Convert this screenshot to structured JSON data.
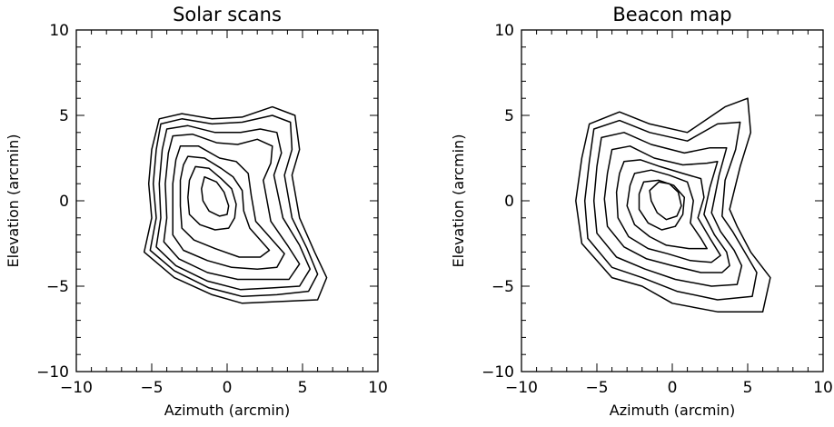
{
  "chart_data": [
    {
      "type": "contour",
      "title": "Solar scans",
      "xlabel": "Azimuth (arcmin)",
      "ylabel": "Elevation (arcmin)",
      "xlim": [
        -10,
        10
      ],
      "ylim": [
        -10,
        10
      ],
      "xticks": [
        -10,
        -5,
        0,
        5,
        10
      ],
      "yticks": [
        -10,
        -5,
        0,
        5,
        10
      ],
      "xtick_labels": [
        "−10",
        "−5",
        "0",
        "5",
        "10"
      ],
      "ytick_labels": [
        "−10",
        "−5",
        "0",
        "5",
        "10"
      ],
      "grid": false,
      "legend": "none",
      "contours": [
        [
          [
            -4.5,
            4.8
          ],
          [
            -3,
            5.1
          ],
          [
            -1,
            4.8
          ],
          [
            1,
            4.9
          ],
          [
            3,
            5.5
          ],
          [
            4.5,
            5
          ],
          [
            4.8,
            3
          ],
          [
            4.3,
            1.5
          ],
          [
            4.8,
            -1
          ],
          [
            5.8,
            -3
          ],
          [
            6.6,
            -4.5
          ],
          [
            6,
            -5.8
          ],
          [
            3.5,
            -5.9
          ],
          [
            1,
            -6
          ],
          [
            -1,
            -5.5
          ],
          [
            -3.5,
            -4.5
          ],
          [
            -5.5,
            -3
          ],
          [
            -5,
            -1
          ],
          [
            -5.2,
            1
          ],
          [
            -5,
            3
          ],
          [
            -4.5,
            4.8
          ]
        ],
        [
          [
            -4.4,
            4.5
          ],
          [
            -3,
            4.8
          ],
          [
            -1,
            4.5
          ],
          [
            1,
            4.6
          ],
          [
            3,
            5
          ],
          [
            4.2,
            4.6
          ],
          [
            4.3,
            3
          ],
          [
            3.8,
            1.5
          ],
          [
            4.3,
            -1
          ],
          [
            5.3,
            -2.8
          ],
          [
            6,
            -4.3
          ],
          [
            5.4,
            -5.3
          ],
          [
            3.3,
            -5.5
          ],
          [
            1,
            -5.6
          ],
          [
            -1.2,
            -5.1
          ],
          [
            -3.5,
            -4.1
          ],
          [
            -5.1,
            -2.9
          ],
          [
            -4.7,
            -1
          ],
          [
            -4.9,
            1
          ],
          [
            -4.7,
            3
          ],
          [
            -4.4,
            4.5
          ]
        ],
        [
          [
            -4,
            4.2
          ],
          [
            -2.6,
            4.4
          ],
          [
            -0.8,
            4
          ],
          [
            0.9,
            4
          ],
          [
            2.2,
            4.2
          ],
          [
            3.3,
            4
          ],
          [
            3.6,
            2.8
          ],
          [
            3.1,
            1.5
          ],
          [
            3.7,
            -1
          ],
          [
            4.8,
            -2.6
          ],
          [
            5.5,
            -4
          ],
          [
            4.8,
            -5
          ],
          [
            3,
            -5.1
          ],
          [
            0.9,
            -5.2
          ],
          [
            -1.3,
            -4.7
          ],
          [
            -3.4,
            -3.8
          ],
          [
            -4.7,
            -2.7
          ],
          [
            -4.4,
            -1
          ],
          [
            -4.5,
            1
          ],
          [
            -4.3,
            3
          ],
          [
            -4,
            4.2
          ]
        ],
        [
          [
            -3.6,
            3.8
          ],
          [
            -2.3,
            3.9
          ],
          [
            -0.7,
            3.4
          ],
          [
            0.7,
            3.3
          ],
          [
            2,
            3.6
          ],
          [
            3,
            3.2
          ],
          [
            2.9,
            2.2
          ],
          [
            2.4,
            1.2
          ],
          [
            2.9,
            -1.2
          ],
          [
            4,
            -2.6
          ],
          [
            4.8,
            -3.7
          ],
          [
            4.1,
            -4.6
          ],
          [
            2.6,
            -4.6
          ],
          [
            0.7,
            -4.6
          ],
          [
            -1.3,
            -4.2
          ],
          [
            -3.2,
            -3.4
          ],
          [
            -4.2,
            -2.4
          ],
          [
            -4,
            -1
          ],
          [
            -4.1,
            1
          ],
          [
            -3.9,
            2.8
          ],
          [
            -3.6,
            3.8
          ]
        ],
        [
          [
            -3.1,
            3.2
          ],
          [
            -1.9,
            3.2
          ],
          [
            -0.5,
            2.5
          ],
          [
            0.6,
            2.3
          ],
          [
            1.4,
            1.6
          ],
          [
            1.6,
            0.3
          ],
          [
            1.9,
            -1.2
          ],
          [
            3,
            -2.3
          ],
          [
            3.8,
            -3.1
          ],
          [
            3.3,
            -3.9
          ],
          [
            2,
            -4
          ],
          [
            0.3,
            -3.9
          ],
          [
            -1.3,
            -3.5
          ],
          [
            -2.9,
            -2.9
          ],
          [
            -3.6,
            -2
          ],
          [
            -3.6,
            -0.8
          ],
          [
            -3.6,
            1
          ],
          [
            -3.4,
            2.4
          ],
          [
            -3.1,
            3.2
          ]
        ],
        [
          [
            -2.6,
            2.6
          ],
          [
            -1.5,
            2.5
          ],
          [
            -0.4,
            1.9
          ],
          [
            0.4,
            1.4
          ],
          [
            1,
            0.6
          ],
          [
            1.1,
            -0.6
          ],
          [
            1.5,
            -1.6
          ],
          [
            2.3,
            -2.4
          ],
          [
            2.8,
            -2.9
          ],
          [
            2.2,
            -3.3
          ],
          [
            0.8,
            -3.3
          ],
          [
            -0.8,
            -2.8
          ],
          [
            -2.2,
            -2.3
          ],
          [
            -3,
            -1.6
          ],
          [
            -3.1,
            -0.3
          ],
          [
            -3.1,
            1.2
          ],
          [
            -2.9,
            2.1
          ],
          [
            -2.6,
            2.6
          ]
        ],
        [
          [
            -2.1,
            2
          ],
          [
            -1.2,
            1.9
          ],
          [
            -0.4,
            1.3
          ],
          [
            0.3,
            0.7
          ],
          [
            0.6,
            -0.2
          ],
          [
            0.5,
            -1
          ],
          [
            0.1,
            -1.6
          ],
          [
            -0.8,
            -1.7
          ],
          [
            -1.8,
            -1.4
          ],
          [
            -2.5,
            -0.8
          ],
          [
            -2.6,
            0.2
          ],
          [
            -2.5,
            1.2
          ],
          [
            -2.1,
            2
          ]
        ],
        [
          [
            -1.5,
            1.4
          ],
          [
            -0.7,
            1.1
          ],
          [
            -0.2,
            0.5
          ],
          [
            0.1,
            -0.3
          ],
          [
            0,
            -0.8
          ],
          [
            -0.5,
            -0.9
          ],
          [
            -1.2,
            -0.6
          ],
          [
            -1.6,
            0
          ],
          [
            -1.7,
            0.7
          ],
          [
            -1.5,
            1.4
          ]
        ]
      ]
    },
    {
      "type": "contour",
      "title": "Beacon map",
      "xlabel": "Azimuth (arcmin)",
      "ylabel": "Elevation (arcmin)",
      "xlim": [
        -10,
        10
      ],
      "ylim": [
        -10,
        10
      ],
      "xticks": [
        -10,
        -5,
        0,
        5,
        10
      ],
      "yticks": [
        -10,
        -5,
        0,
        5,
        10
      ],
      "xtick_labels": [
        "−10",
        "−5",
        "0",
        "5",
        "10"
      ],
      "ytick_labels": [
        "−10",
        "−5",
        "0",
        "5",
        "10"
      ],
      "grid": false,
      "legend": "none",
      "contours": [
        [
          [
            -5.5,
            4.5
          ],
          [
            -3.5,
            5.2
          ],
          [
            -1.5,
            4.5
          ],
          [
            1,
            4
          ],
          [
            3.5,
            5.5
          ],
          [
            5,
            6
          ],
          [
            5.2,
            4
          ],
          [
            4.5,
            2
          ],
          [
            3.8,
            -0.5
          ],
          [
            4.3,
            -1.5
          ],
          [
            5.2,
            -3
          ],
          [
            6.5,
            -4.5
          ],
          [
            6,
            -6.5
          ],
          [
            3,
            -6.5
          ],
          [
            0,
            -6
          ],
          [
            -2,
            -5
          ],
          [
            -4,
            -4.5
          ],
          [
            -6,
            -2.5
          ],
          [
            -6.4,
            0
          ],
          [
            -6,
            2.5
          ],
          [
            -5.5,
            4.5
          ]
        ],
        [
          [
            -5.2,
            4.2
          ],
          [
            -3.5,
            4.7
          ],
          [
            -1.5,
            4
          ],
          [
            1,
            3.5
          ],
          [
            3,
            4.5
          ],
          [
            4.5,
            4.6
          ],
          [
            4.2,
            3
          ],
          [
            3.5,
            1.2
          ],
          [
            3.3,
            -0.9
          ],
          [
            4,
            -1.8
          ],
          [
            4.8,
            -3
          ],
          [
            5.6,
            -4.2
          ],
          [
            5.3,
            -5.6
          ],
          [
            3,
            -5.8
          ],
          [
            0.3,
            -5.3
          ],
          [
            -2,
            -4.5
          ],
          [
            -4,
            -3.9
          ],
          [
            -5.6,
            -2.2
          ],
          [
            -5.8,
            0
          ],
          [
            -5.5,
            2.3
          ],
          [
            -5.2,
            4.2
          ]
        ],
        [
          [
            -4.7,
            3.7
          ],
          [
            -3.2,
            4
          ],
          [
            -1.4,
            3.3
          ],
          [
            0.8,
            2.8
          ],
          [
            2.5,
            3.1
          ],
          [
            3.6,
            3.1
          ],
          [
            3.1,
            1.5
          ],
          [
            2.6,
            -0.7
          ],
          [
            3.2,
            -1.8
          ],
          [
            4.1,
            -2.9
          ],
          [
            4.6,
            -3.8
          ],
          [
            4.3,
            -4.9
          ],
          [
            2.6,
            -5
          ],
          [
            0.2,
            -4.6
          ],
          [
            -1.8,
            -4
          ],
          [
            -3.7,
            -3.3
          ],
          [
            -5,
            -1.9
          ],
          [
            -5.2,
            0
          ],
          [
            -5,
            2
          ],
          [
            -4.7,
            3.7
          ]
        ],
        [
          [
            -4,
            3
          ],
          [
            -2.8,
            3.2
          ],
          [
            -1.2,
            2.5
          ],
          [
            0.7,
            2.1
          ],
          [
            2.3,
            2.2
          ],
          [
            3,
            2.3
          ],
          [
            2.5,
            0.8
          ],
          [
            2.1,
            -0.8
          ],
          [
            2.8,
            -2
          ],
          [
            3.6,
            -3
          ],
          [
            3.8,
            -3.8
          ],
          [
            3.3,
            -4.2
          ],
          [
            1.9,
            -4.2
          ],
          [
            0,
            -3.8
          ],
          [
            -1.7,
            -3.4
          ],
          [
            -3.2,
            -2.7
          ],
          [
            -4.3,
            -1.5
          ],
          [
            -4.5,
            0.1
          ],
          [
            -4.3,
            1.6
          ],
          [
            -4,
            3
          ]
        ],
        [
          [
            -3.2,
            2.3
          ],
          [
            -2.1,
            2.4
          ],
          [
            -0.8,
            2
          ],
          [
            0.7,
            1.6
          ],
          [
            1.9,
            1.3
          ],
          [
            2.1,
            0.2
          ],
          [
            1.7,
            -1
          ],
          [
            2.5,
            -2.2
          ],
          [
            3.2,
            -3.2
          ],
          [
            2.6,
            -3.6
          ],
          [
            1.2,
            -3.5
          ],
          [
            -0.3,
            -3.1
          ],
          [
            -1.6,
            -2.8
          ],
          [
            -2.9,
            -2.1
          ],
          [
            -3.6,
            -1
          ],
          [
            -3.7,
            0.5
          ],
          [
            -3.5,
            1.6
          ],
          [
            -3.2,
            2.3
          ]
        ],
        [
          [
            -2.5,
            1.6
          ],
          [
            -1.4,
            1.8
          ],
          [
            -0.2,
            1.5
          ],
          [
            1,
            1.1
          ],
          [
            1.4,
            0
          ],
          [
            1.2,
            -1.3
          ],
          [
            1.9,
            -2.2
          ],
          [
            2.3,
            -2.8
          ],
          [
            1.1,
            -2.8
          ],
          [
            -0.4,
            -2.6
          ],
          [
            -1.5,
            -2.1
          ],
          [
            -2.5,
            -1.4
          ],
          [
            -3,
            -0.3
          ],
          [
            -2.8,
            0.9
          ],
          [
            -2.5,
            1.6
          ]
        ],
        [
          [
            -1.9,
            1.1
          ],
          [
            -0.9,
            1.2
          ],
          [
            0.1,
            0.9
          ],
          [
            0.8,
            0.2
          ],
          [
            0.7,
            -0.8
          ],
          [
            0.2,
            -1.5
          ],
          [
            -0.7,
            -1.7
          ],
          [
            -1.6,
            -1.3
          ],
          [
            -2.2,
            -0.5
          ],
          [
            -2.2,
            0.4
          ],
          [
            -1.9,
            1.1
          ]
        ],
        [
          [
            -1.5,
            0.6
          ],
          [
            -0.9,
            1.1
          ],
          [
            -0.2,
            1
          ],
          [
            0.4,
            0.5
          ],
          [
            0.6,
            -0.3
          ],
          [
            0.3,
            -0.9
          ],
          [
            -0.4,
            -1.1
          ],
          [
            -1,
            -0.7
          ],
          [
            -1.4,
            0
          ],
          [
            -1.5,
            0.6
          ]
        ]
      ]
    }
  ]
}
